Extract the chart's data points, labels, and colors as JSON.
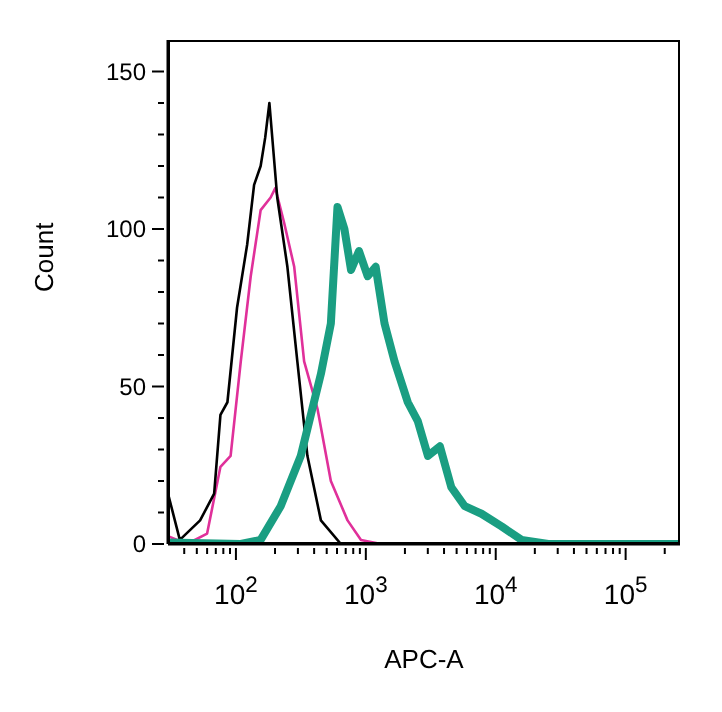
{
  "chart_data": {
    "type": "line",
    "xlabel": "APC-A",
    "ylabel": "Count",
    "log": "x",
    "xlim": [
      30,
      262144
    ],
    "ylim": [
      0,
      160
    ],
    "xticks": [
      {
        "value": 40,
        "label": null
      },
      {
        "value": 50,
        "label": null
      },
      {
        "value": 60,
        "label": null
      },
      {
        "value": 70,
        "label": null
      },
      {
        "value": 80,
        "label": null
      },
      {
        "value": 90,
        "label": null
      },
      {
        "value": 100,
        "label": "10$^{2}$"
      },
      {
        "value": 200,
        "label": null
      },
      {
        "value": 300,
        "label": null
      },
      {
        "value": 400,
        "label": null
      },
      {
        "value": 500,
        "label": null
      },
      {
        "value": 600,
        "label": null
      },
      {
        "value": 700,
        "label": null
      },
      {
        "value": 800,
        "label": null
      },
      {
        "value": 900,
        "label": null
      },
      {
        "value": 1000,
        "label": "10$^{3}$"
      },
      {
        "value": 2000,
        "label": null
      },
      {
        "value": 3000,
        "label": null
      },
      {
        "value": 4000,
        "label": null
      },
      {
        "value": 5000,
        "label": null
      },
      {
        "value": 6000,
        "label": null
      },
      {
        "value": 7000,
        "label": null
      },
      {
        "value": 8000,
        "label": null
      },
      {
        "value": 9000,
        "label": null
      },
      {
        "value": 10000,
        "label": "10$^{4}$"
      },
      {
        "value": 20000,
        "label": null
      },
      {
        "value": 30000,
        "label": null
      },
      {
        "value": 40000,
        "label": null
      },
      {
        "value": 50000,
        "label": null
      },
      {
        "value": 60000,
        "label": null
      },
      {
        "value": 70000,
        "label": null
      },
      {
        "value": 80000,
        "label": null
      },
      {
        "value": 90000,
        "label": null
      },
      {
        "value": 100000,
        "label": "10$^{5}$"
      },
      {
        "value": 200000,
        "label": null
      }
    ],
    "yticks": [
      0,
      {
        "value": 10,
        "label": null
      },
      {
        "value": 20,
        "label": null
      },
      {
        "value": 30,
        "label": null
      },
      {
        "value": 40,
        "label": null
      },
      50,
      {
        "value": 60,
        "label": null
      },
      {
        "value": 70,
        "label": null
      },
      {
        "value": 80,
        "label": null
      },
      {
        "value": 90,
        "label": null
      },
      100,
      {
        "value": 110,
        "label": null
      },
      {
        "value": 120,
        "label": null
      },
      {
        "value": 130,
        "label": null
      },
      {
        "value": 140,
        "label": null
      },
      150
    ],
    "series": [
      {
        "color": "#e0309a",
        "x": [
          30,
          42,
          60,
          76,
          91,
          109,
          130,
          155,
          185,
          201,
          235,
          281,
          335,
          424,
          538,
          723,
          918,
          1310
        ],
        "values": [
          2.5,
          0,
          3.3,
          24.5,
          28,
          58,
          85,
          106,
          110,
          113,
          102,
          88,
          58,
          43,
          20,
          7.5,
          1.3,
          0
        ]
      },
      {
        "color": "#000000",
        "x": [
          30,
          37,
          53,
          68,
          76,
          86,
          102,
          122,
          138,
          155,
          168,
          181,
          208,
          249,
          297,
          355,
          451,
          643,
          918,
          1310
        ],
        "values": [
          16,
          1.3,
          7.5,
          16,
          41,
          45,
          75,
          95,
          114,
          120,
          129,
          140,
          110,
          88,
          58,
          28,
          7.5,
          0,
          0,
          0
        ]
      },
      {
        "color": "#1a9e82",
        "x": [
          30,
          109,
          155,
          221,
          316,
          451,
          538,
          605,
          684,
          769,
          886,
          1033,
          1191,
          1393,
          1663,
          2104,
          2512,
          3006,
          3718,
          4550,
          5780,
          7770,
          11090,
          15800,
          25400,
          262144
        ],
        "values": [
          0.5,
          0,
          1.3,
          12,
          28,
          54,
          70,
          107,
          100,
          87,
          93,
          85,
          88,
          70,
          58,
          45,
          39,
          28,
          31,
          18,
          12,
          9.6,
          5.6,
          1.3,
          0,
          0
        ]
      }
    ]
  }
}
